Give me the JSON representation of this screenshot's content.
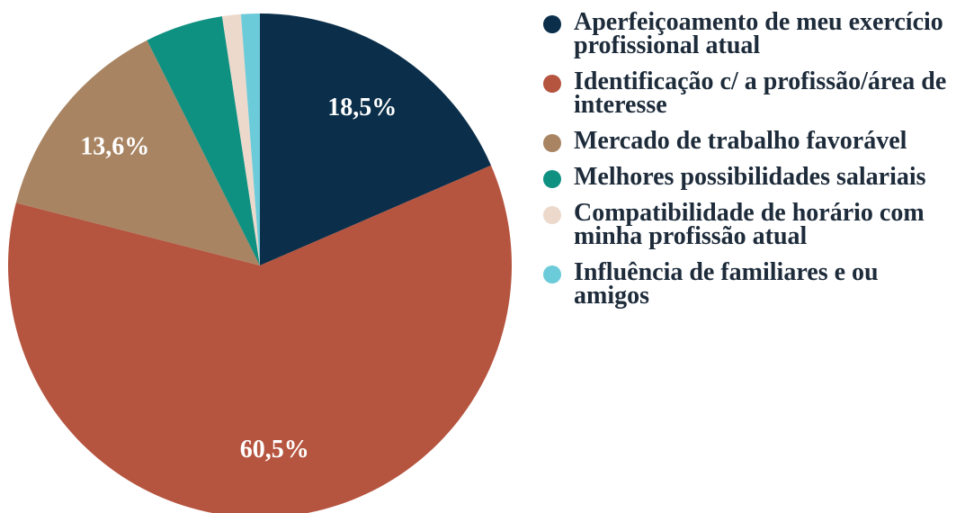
{
  "chart_data": {
    "type": "pie",
    "categories": [
      "Aperfeiçoamento de meu exercício profissional atual",
      "Identificação c/ a profissão/área de interesse",
      "Mercado de trabalho favorável",
      "Melhores possibilidades salariais",
      "Compatibilidade de horário com minha profissão atual",
      "Influência de familiares e ou amigos"
    ],
    "values": [
      18.5,
      60.5,
      13.6,
      5.0,
      1.2,
      1.2
    ],
    "value_labels": [
      "18,5%",
      "60,5%",
      "13,6%",
      null,
      null,
      null
    ],
    "colors": [
      "#0b2f4a",
      "#b5543f",
      "#a88462",
      "#0f9182",
      "#ecd9cc",
      "#6ccbd8"
    ],
    "legend": "right"
  }
}
